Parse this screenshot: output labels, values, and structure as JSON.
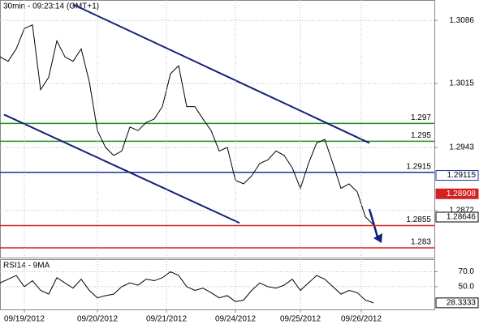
{
  "chart_data": [
    {
      "type": "line",
      "title": "30min - 09:23:14 (GMT+1)",
      "x": [
        0,
        2,
        4,
        6,
        8,
        10,
        12,
        14,
        16,
        18,
        20,
        22,
        24,
        26,
        28,
        30,
        32,
        34,
        36,
        38,
        40,
        42,
        44,
        46,
        48,
        50,
        52,
        54,
        56,
        58,
        60,
        62,
        64,
        66,
        68,
        70,
        72,
        74,
        76,
        78,
        80,
        82,
        84,
        86,
        88,
        90,
        92
      ],
      "series": [
        {
          "color": "#000000",
          "values": [
            1.3045,
            1.304,
            1.3054,
            1.3077,
            1.3081,
            1.3008,
            1.3022,
            1.3063,
            1.3045,
            1.304,
            1.3054,
            1.3017,
            1.2962,
            1.2943,
            1.2934,
            1.2939,
            1.2966,
            1.2962,
            1.2971,
            1.2975,
            1.2989,
            1.3026,
            1.3035,
            1.2989,
            1.2989,
            1.2975,
            1.2962,
            1.2939,
            1.2943,
            1.2906,
            1.2902,
            1.2911,
            1.2925,
            1.2929,
            1.2939,
            1.2934,
            1.292,
            1.2897,
            1.2925,
            1.2948,
            1.2952,
            1.2925,
            1.2897,
            1.2902,
            1.2893,
            1.2865,
            1.2856
          ]
        }
      ],
      "xlim": [
        0,
        107
      ],
      "ylim": [
        1.2819,
        1.3109
      ],
      "yticks": [
        1.2872,
        1.2943,
        1.3015,
        1.3086
      ],
      "levels": [
        {
          "value": 1.297,
          "color": "#1f8f1f"
        },
        {
          "value": 1.295,
          "color": "#1f8f1f"
        },
        {
          "value": 1.2915,
          "color": "#1c2fa8"
        },
        {
          "value": 1.2855,
          "color": "#d42020"
        },
        {
          "value": 1.283,
          "color": "#d42020"
        }
      ],
      "trendlines": [
        {
          "color": "#14207a",
          "x": [
            18,
            91
          ],
          "y": [
            1.3104,
            1.2948
          ]
        },
        {
          "color": "#14207a",
          "x": [
            1,
            59
          ],
          "y": [
            1.298,
            1.2858
          ]
        }
      ],
      "markers": [
        {
          "value": 1.29115,
          "color": "#1c2fa8"
        },
        {
          "value": 1.28908,
          "color": "#d42020"
        },
        {
          "value": 1.28646,
          "color": "#000000"
        }
      ]
    },
    {
      "type": "line",
      "title": "RSI14 - 9MA",
      "x": [
        0,
        2,
        4,
        6,
        8,
        10,
        12,
        14,
        16,
        18,
        20,
        22,
        24,
        26,
        28,
        30,
        32,
        34,
        36,
        38,
        40,
        42,
        44,
        46,
        48,
        50,
        52,
        54,
        56,
        58,
        60,
        62,
        64,
        66,
        68,
        70,
        72,
        74,
        76,
        78,
        80,
        82,
        84,
        86,
        88,
        90,
        92
      ],
      "series": [
        {
          "color": "#000000",
          "values": [
            55,
            60,
            65,
            50,
            58,
            45,
            40,
            62,
            55,
            48,
            60,
            45,
            35,
            38,
            40,
            50,
            55,
            52,
            60,
            58,
            62,
            70,
            65,
            50,
            45,
            48,
            42,
            35,
            38,
            30,
            32,
            45,
            55,
            50,
            48,
            52,
            60,
            45,
            55,
            65,
            60,
            50,
            40,
            45,
            42,
            32,
            28.3333
          ]
        }
      ],
      "xlim": [
        0,
        107
      ],
      "ylim": [
        19.5,
        86.8
      ],
      "yticks": [
        {
          "value": 70,
          "label": "70.0"
        },
        {
          "value": 50,
          "label": "50.0"
        }
      ],
      "xticks": [
        {
          "value": 6,
          "label": "09/19/2012"
        },
        {
          "value": 24,
          "label": "09/20/2012"
        },
        {
          "value": 41,
          "label": "09/21/2012"
        },
        {
          "value": 58,
          "label": "09/24/2012"
        },
        {
          "value": 74,
          "label": "09/25/2012"
        },
        {
          "value": 89,
          "label": "09/26/2012"
        }
      ],
      "markers": [
        {
          "value": 28.3333,
          "color": "#000000"
        }
      ]
    }
  ]
}
